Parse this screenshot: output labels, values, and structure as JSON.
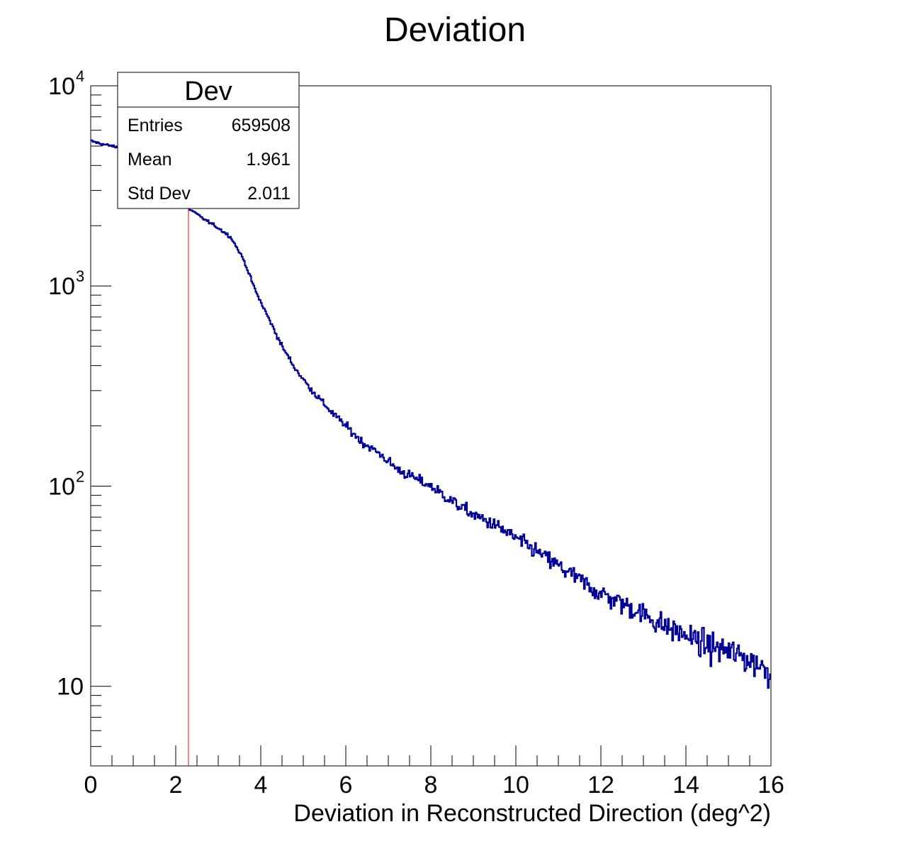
{
  "chart_data": {
    "type": "histogram",
    "title": "Deviation",
    "xlabel": "Deviation in Reconstructed Direction (deg^2)",
    "ylabel": "",
    "xlim": [
      0,
      16
    ],
    "ylim": [
      4,
      10000
    ],
    "log_y": true,
    "grid": false,
    "x_ticks": [
      "0",
      "2",
      "4",
      "6",
      "8",
      "10",
      "12",
      "14",
      "16"
    ],
    "y_ticks": [
      {
        "value": 10,
        "base": "10",
        "exp": ""
      },
      {
        "value": 100,
        "base": "10",
        "exp": "2"
      },
      {
        "value": 1000,
        "base": "10",
        "exp": "3"
      },
      {
        "value": 10000,
        "base": "10",
        "exp": "4"
      }
    ],
    "series_color": "#000099",
    "marker_line": {
      "x": 2.3,
      "y_top": 5800,
      "color": "#ff0000"
    },
    "anchors": [
      [
        0.0,
        5300
      ],
      [
        0.3,
        5100
      ],
      [
        0.6,
        4950
      ],
      [
        0.9,
        4800
      ],
      [
        1.2,
        4500
      ],
      [
        1.5,
        4000
      ],
      [
        1.8,
        3500
      ],
      [
        2.1,
        2900
      ],
      [
        2.3,
        2450
      ],
      [
        2.6,
        2200
      ],
      [
        3.0,
        1950
      ],
      [
        3.3,
        1750
      ],
      [
        3.6,
        1350
      ],
      [
        3.9,
        920
      ],
      [
        4.2,
        680
      ],
      [
        4.5,
        500
      ],
      [
        4.8,
        390
      ],
      [
        5.1,
        320
      ],
      [
        5.4,
        270
      ],
      [
        5.7,
        230
      ],
      [
        6.0,
        200
      ],
      [
        6.4,
        165
      ],
      [
        6.8,
        145
      ],
      [
        7.2,
        122
      ],
      [
        7.6,
        110
      ],
      [
        8.0,
        100
      ],
      [
        8.5,
        84
      ],
      [
        9.0,
        72
      ],
      [
        9.5,
        64
      ],
      [
        10.0,
        55
      ],
      [
        10.5,
        47
      ],
      [
        11.0,
        40
      ],
      [
        11.5,
        34
      ],
      [
        12.0,
        29
      ],
      [
        12.5,
        26
      ],
      [
        13.0,
        23
      ],
      [
        13.5,
        20
      ],
      [
        14.0,
        18
      ],
      [
        14.5,
        16
      ],
      [
        15.0,
        15
      ],
      [
        15.5,
        13.5
      ],
      [
        16.0,
        12
      ]
    ],
    "noise_start": 4.0,
    "stats_box": {
      "title": "Dev",
      "rows": [
        {
          "label": "Entries",
          "value": "659508"
        },
        {
          "label": "Mean",
          "value": "1.961"
        },
        {
          "label": "Std Dev",
          "value": "2.011"
        }
      ]
    }
  }
}
